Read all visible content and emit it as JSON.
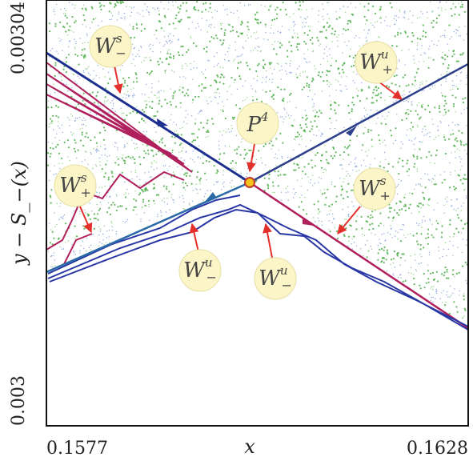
{
  "chart_data": {
    "type": "scatter",
    "title": "",
    "xlabel": "x",
    "ylabel": "y − S_−(x)",
    "xlim": [
      0.1577,
      0.1628
    ],
    "ylim": [
      0.003,
      0.00304
    ],
    "x_ticks": [
      "0.1577",
      "0.1628"
    ],
    "y_ticks": [
      "0.003",
      "0.00304"
    ],
    "grid": false,
    "colors": {
      "stable_manifold": "#b0205c",
      "unstable_manifold": "#1c2f8f",
      "scatter": "#3ea83b",
      "fixed_point": "#f3c21b",
      "annotation_arrow": "#e4302a",
      "label_bubble": "#fbf5c8"
    },
    "fixed_point": {
      "label": "P",
      "superscript": "4",
      "x": 0.16016,
      "y": 0.003265
    },
    "annotations": [
      {
        "id": "ws-minus",
        "main": "W",
        "sup": "s",
        "sub": "−"
      },
      {
        "id": "wu-plus",
        "main": "W",
        "sup": "u",
        "sub": "+"
      },
      {
        "id": "p4",
        "main": "P",
        "sup": "4",
        "sub": ""
      },
      {
        "id": "ws-plus-left",
        "main": "W",
        "sup": "s",
        "sub": "+"
      },
      {
        "id": "ws-plus-right",
        "main": "W",
        "sup": "s",
        "sub": "+"
      },
      {
        "id": "wu-minus-left",
        "main": "W",
        "sup": "u",
        "sub": "−"
      },
      {
        "id": "wu-minus-right",
        "main": "W",
        "sup": "u",
        "sub": "−"
      }
    ]
  }
}
